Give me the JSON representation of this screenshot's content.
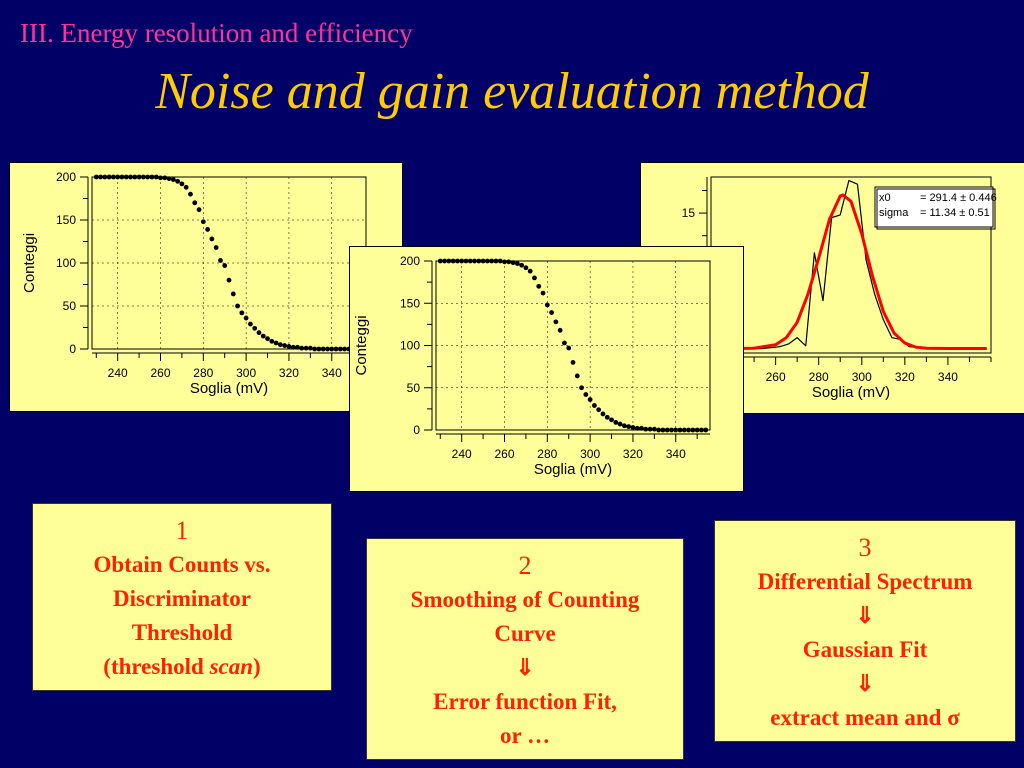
{
  "header": {
    "section": "III. Energy resolution and efficiency",
    "title": "Noise and gain evaluation method"
  },
  "steps": [
    {
      "number": "1",
      "lines": [
        "Obtain Counts vs.",
        "Discriminator",
        "Threshold",
        "(threshold "
      ],
      "italic_word": "scan",
      "tail": ")"
    },
    {
      "number": "2",
      "lines": [
        "Smoothing of Counting",
        "Curve",
        "⇓",
        "Error function Fit,",
        "or …"
      ]
    },
    {
      "number": "3",
      "lines": [
        "Differential Spectrum",
        "⇓",
        "Gaussian Fit",
        "⇓",
        "extract mean and "
      ],
      "symbol": "σ"
    }
  ],
  "colors": {
    "background": "#000066",
    "section": "#ff3399",
    "title": "#ffcc00",
    "box_text": "#ff2200",
    "panel_bg": "#ffff99",
    "fit_line": "#ff0000"
  },
  "chart_data": [
    {
      "type": "scatter",
      "xlabel": "Soglia (mV)",
      "ylabel": "Conteggi",
      "xlim": [
        228,
        356
      ],
      "ylim": [
        0,
        200
      ],
      "xticks": [
        240,
        260,
        280,
        300,
        320,
        340
      ],
      "yticks": [
        0,
        50,
        100,
        150,
        200
      ],
      "grid": true,
      "x": [
        230,
        232,
        234,
        236,
        238,
        240,
        242,
        244,
        246,
        248,
        250,
        252,
        254,
        256,
        258,
        260,
        262,
        264,
        266,
        268,
        270,
        272,
        274,
        276,
        278,
        280,
        282,
        284,
        286,
        288,
        290,
        292,
        294,
        296,
        298,
        300,
        302,
        304,
        306,
        308,
        310,
        312,
        314,
        316,
        318,
        320,
        322,
        324,
        326,
        328,
        330,
        332,
        334,
        336,
        338,
        340,
        342,
        344,
        346,
        348,
        350,
        352,
        354
      ],
      "y": [
        200,
        200,
        200,
        200,
        200,
        200,
        200,
        200,
        200,
        200,
        200,
        200,
        200,
        200,
        200,
        199,
        199,
        198,
        197,
        195,
        192,
        188,
        180,
        170,
        162,
        148,
        139,
        128,
        118,
        103,
        97,
        80,
        64,
        50,
        42,
        36,
        29,
        24,
        19,
        15,
        12,
        9,
        7,
        5,
        4,
        3,
        2,
        2,
        1,
        1,
        1,
        0,
        0,
        0,
        0,
        0,
        0,
        0,
        0,
        0,
        0,
        0,
        0
      ]
    },
    {
      "type": "scatter",
      "xlabel": "Soglia (mV)",
      "ylabel": "Conteggi",
      "xlim": [
        228,
        356
      ],
      "ylim": [
        0,
        200
      ],
      "xticks": [
        240,
        260,
        280,
        300,
        320,
        340
      ],
      "yticks": [
        0,
        50,
        100,
        150,
        200
      ],
      "grid": true,
      "x": [
        230,
        232,
        234,
        236,
        238,
        240,
        242,
        244,
        246,
        248,
        250,
        252,
        254,
        256,
        258,
        260,
        262,
        264,
        266,
        268,
        270,
        272,
        274,
        276,
        278,
        280,
        282,
        284,
        286,
        288,
        290,
        292,
        294,
        296,
        298,
        300,
        302,
        304,
        306,
        308,
        310,
        312,
        314,
        316,
        318,
        320,
        322,
        324,
        326,
        328,
        330,
        332,
        334,
        336,
        338,
        340,
        342,
        344,
        346,
        348,
        350,
        352,
        354
      ],
      "y": [
        200,
        200,
        200,
        200,
        200,
        200,
        200,
        200,
        200,
        200,
        200,
        200,
        200,
        200,
        200,
        199,
        199,
        198,
        197,
        195,
        192,
        188,
        180,
        170,
        162,
        148,
        139,
        128,
        118,
        103,
        97,
        80,
        64,
        50,
        42,
        36,
        29,
        24,
        19,
        15,
        12,
        9,
        7,
        5,
        4,
        3,
        2,
        2,
        1,
        1,
        1,
        0,
        0,
        0,
        0,
        0,
        0,
        0,
        0,
        0,
        0,
        0,
        0
      ]
    },
    {
      "type": "line",
      "xlabel": "Soglia (mV)",
      "xlim": [
        230,
        360
      ],
      "ylim": [
        -0.5,
        19
      ],
      "xticks": [
        240,
        260,
        280,
        300,
        320,
        340
      ],
      "yticks": [
        0,
        5,
        10,
        15
      ],
      "grid": false,
      "series": [
        {
          "x": [
            230,
            238,
            246,
            254,
            262,
            266,
            270,
            274,
            278,
            282,
            286,
            290,
            294,
            298,
            302,
            306,
            310,
            314,
            318,
            322,
            326,
            330,
            334,
            338,
            342,
            346,
            350,
            354,
            358
          ],
          "y": [
            0,
            0,
            0,
            0,
            0.2,
            0.5,
            1.2,
            0.3,
            10.6,
            5.3,
            14.5,
            14.8,
            18.6,
            18.2,
            9.8,
            6,
            3.2,
            1.2,
            1,
            0.2,
            0.1,
            0,
            0,
            0,
            0,
            0,
            0,
            0,
            0
          ]
        },
        {
          "x": [
            230,
            240,
            250,
            260,
            265,
            270,
            275,
            280,
            285,
            290,
            291.4,
            295,
            300,
            305,
            310,
            315,
            320,
            325,
            330,
            340,
            350,
            358
          ],
          "y": [
            0,
            0,
            0.03,
            0.42,
            1.2,
            2.9,
            6.0,
            10.0,
            14.3,
            16.9,
            17.0,
            16.3,
            12.7,
            8.0,
            4.1,
            1.7,
            0.6,
            0.15,
            0.03,
            0,
            0,
            0
          ]
        }
      ],
      "fit_params": {
        "x0_label": "x0",
        "x0_value": "= 291.4 ± 0.446",
        "sigma_label": "sigma",
        "sigma_value": "= 11.34 ± 0.51"
      }
    }
  ]
}
